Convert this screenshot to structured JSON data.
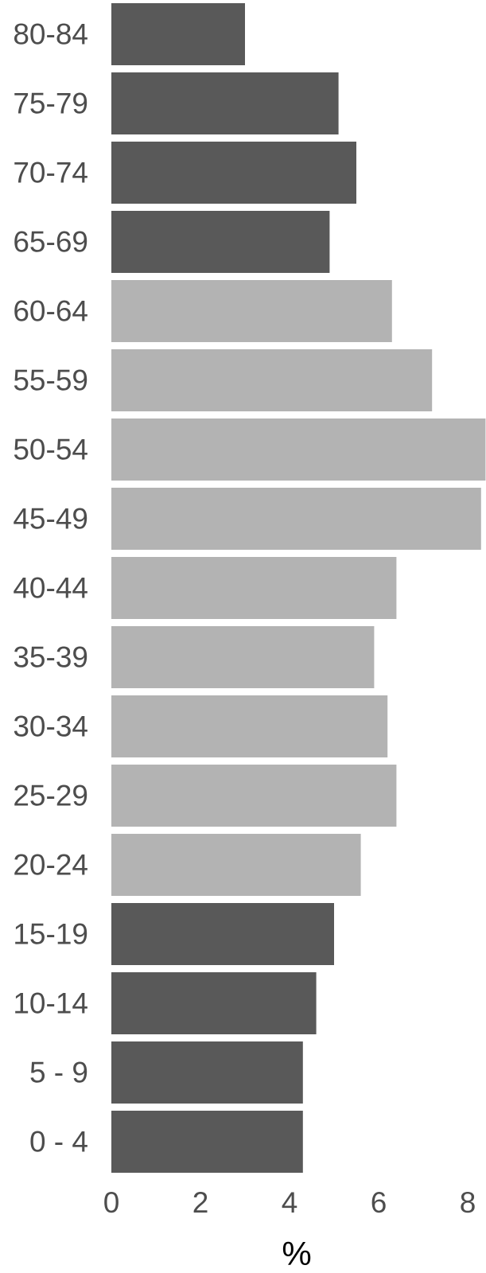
{
  "chart_data": {
    "type": "bar",
    "orientation": "horizontal",
    "title": "",
    "xlabel": "%",
    "ylabel": "",
    "categories": [
      "0 - 4",
      "5 - 9",
      "10-14",
      "15-19",
      "20-24",
      "25-29",
      "30-34",
      "35-39",
      "40-44",
      "45-49",
      "50-54",
      "55-59",
      "60-64",
      "65-69",
      "70-74",
      "75-79",
      "80-84"
    ],
    "values": [
      4.3,
      4.3,
      4.6,
      5.0,
      5.6,
      6.4,
      6.2,
      5.9,
      6.4,
      8.3,
      8.4,
      7.2,
      6.3,
      4.9,
      5.5,
      5.1,
      3.0
    ],
    "highlight_colors": [
      "#595959",
      "#595959",
      "#595959",
      "#595959",
      "#b3b3b3",
      "#b3b3b3",
      "#b3b3b3",
      "#b3b3b3",
      "#b3b3b3",
      "#b3b3b3",
      "#b3b3b3",
      "#b3b3b3",
      "#b3b3b3",
      "#595959",
      "#595959",
      "#595959",
      "#595959"
    ],
    "xlim": [
      0,
      8.4
    ],
    "x_ticks": [
      0,
      2,
      4,
      6,
      8
    ],
    "x_tick_labels": [
      "0",
      "2",
      "4",
      "6",
      "8"
    ],
    "grid": false,
    "legend": "none",
    "colors": {
      "dark": "#595959",
      "light": "#b3b3b3",
      "tick_text": "#4d4d4d",
      "axis_title": "#000000"
    }
  }
}
